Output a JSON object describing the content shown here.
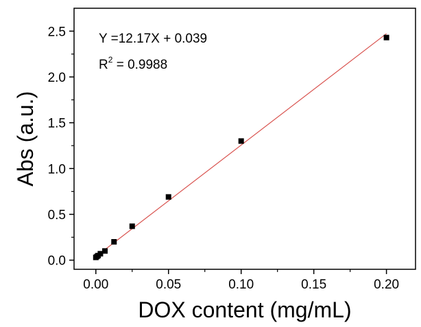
{
  "chart_data": {
    "type": "scatter",
    "xlabel": "DOX content (mg/mL)",
    "ylabel": "Abs (a.u.)",
    "xlim": [
      -0.015,
      0.22
    ],
    "ylim": [
      -0.1,
      2.75
    ],
    "x_ticks": [
      0.0,
      0.05,
      0.1,
      0.15,
      0.2
    ],
    "x_tick_labels": [
      "0.00",
      "0.05",
      "0.10",
      "0.15",
      "0.20"
    ],
    "y_ticks": [
      0.0,
      0.5,
      1.0,
      1.5,
      2.0,
      2.5
    ],
    "y_tick_labels": [
      "0.0",
      "0.5",
      "1.0",
      "1.5",
      "2.0",
      "2.5"
    ],
    "grid": false,
    "series": [
      {
        "marker": "square",
        "color": "#000000",
        "x": [
          0.0,
          0.00078,
          0.00156,
          0.003125,
          0.00625,
          0.0125,
          0.025,
          0.05,
          0.1,
          0.2
        ],
        "y": [
          0.03,
          0.04,
          0.05,
          0.07,
          0.1,
          0.2,
          0.37,
          0.69,
          1.3,
          2.43
        ]
      }
    ],
    "fit_line": {
      "slope": 12.17,
      "intercept": 0.039,
      "color": "#d9534f",
      "x_range": [
        0.0,
        0.2
      ]
    },
    "annotations": {
      "equation": "Y =12.17X + 0.039",
      "r2_prefix": "R",
      "r2_sup": "2",
      "r2_value": " = 0.9988"
    }
  }
}
